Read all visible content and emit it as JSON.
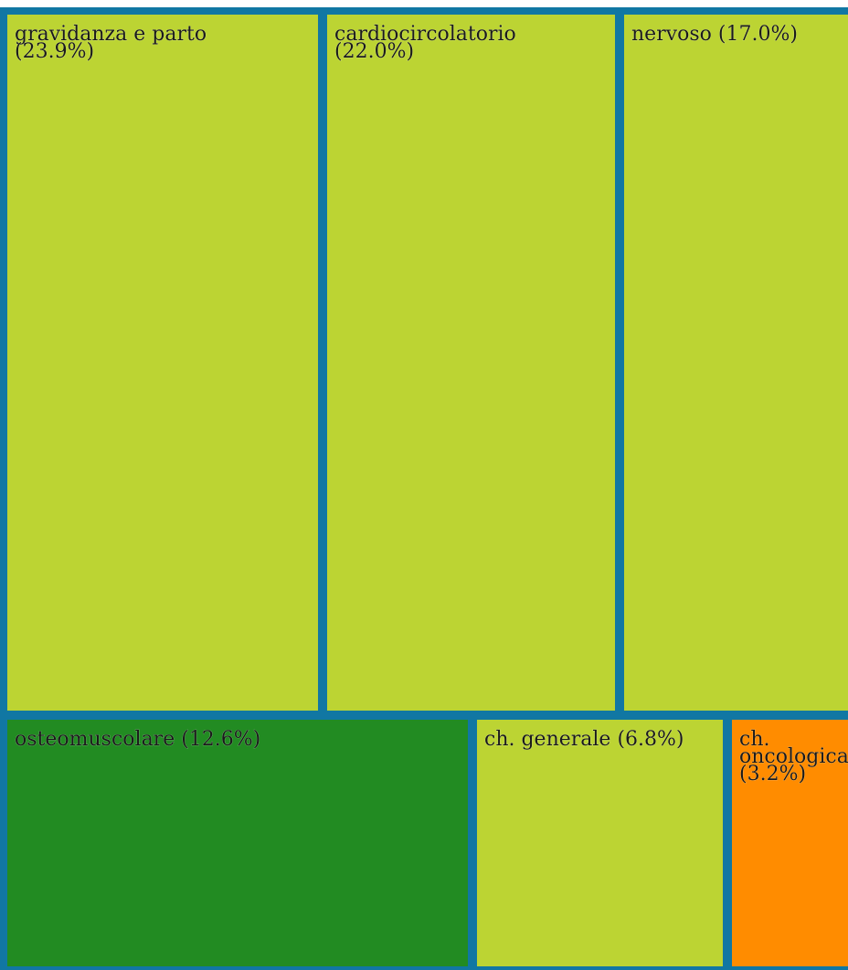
{
  "chart_data": {
    "type": "treemap",
    "colors": {
      "border": "#1177a3",
      "lime": "#bcd433",
      "green": "#228b22",
      "orange": "#ff8c00"
    },
    "items": [
      {
        "name": "gravidanza e parto",
        "percent": 23.9,
        "label_lines": [
          "gravidanza e parto",
          "(23.9%)"
        ],
        "color": "#bcd433"
      },
      {
        "name": "cardiocircolatorio",
        "percent": 22.0,
        "label_lines": [
          "cardiocircolatorio",
          "(22.0%)"
        ],
        "color": "#bcd433"
      },
      {
        "name": "nervoso",
        "percent": 17.0,
        "label_lines": [
          "nervoso (17.0%)"
        ],
        "color": "#bcd433"
      },
      {
        "name": "osteomuscolare",
        "percent": 12.6,
        "label_lines": [
          "osteomuscolare (12.6%)"
        ],
        "color": "#228b22"
      },
      {
        "name": "ch. generale",
        "percent": 6.8,
        "label_lines": [
          "ch. generale (6.8%)"
        ],
        "color": "#bcd433"
      },
      {
        "name": "ch. oncologica",
        "percent": 3.2,
        "label_lines": [
          "ch.",
          "oncologica",
          "(3.2%)"
        ],
        "color": "#ff8c00"
      }
    ]
  }
}
